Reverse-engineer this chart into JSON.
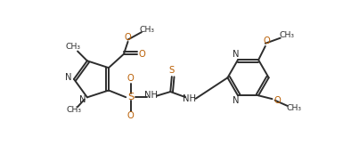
{
  "bg_color": "#ffffff",
  "line_color": "#2d2d2d",
  "n_color": "#2d2d2d",
  "o_color": "#b85c00",
  "s_color": "#b85c00",
  "lw": 1.4,
  "font_size": 7.2,
  "figw": 3.85,
  "figh": 1.82,
  "dpi": 100,
  "xlim": [
    0,
    385
  ],
  "ylim": [
    0,
    182
  ]
}
